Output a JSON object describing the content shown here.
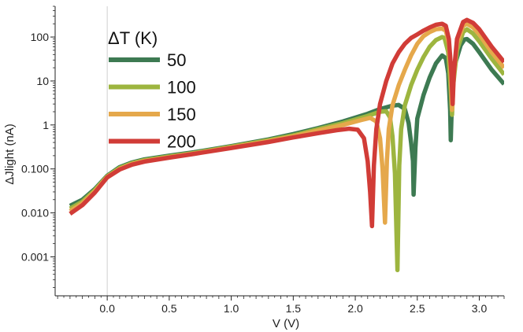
{
  "chart_data": {
    "type": "line",
    "xlabel": "V (V)",
    "ylabel": "ΔJlight (nA)",
    "xlim": [
      -0.42,
      3.2
    ],
    "ylim": [
      0.00013,
      500
    ],
    "y_scale": "log",
    "x_ticks": [
      {
        "value": 0.0,
        "label": "0.0"
      },
      {
        "value": 0.5,
        "label": "0.5"
      },
      {
        "value": 1.0,
        "label": "1.0"
      },
      {
        "value": 1.5,
        "label": "1.5"
      },
      {
        "value": 2.0,
        "label": "2.0"
      },
      {
        "value": 2.5,
        "label": "2.5"
      },
      {
        "value": 3.0,
        "label": "3.0"
      }
    ],
    "y_ticks": [
      {
        "value": 0.001,
        "label": "0.001"
      },
      {
        "value": 0.01,
        "label": "0.010"
      },
      {
        "value": 0.1,
        "label": "0.100"
      },
      {
        "value": 1,
        "label": "1"
      },
      {
        "value": 10,
        "label": "10"
      },
      {
        "value": 100,
        "label": "100"
      }
    ],
    "grid": false,
    "legend": {
      "title": "ΔT (K)",
      "position": "top-left"
    },
    "series": [
      {
        "name": "50",
        "color": "#3d7a52",
        "points": [
          [
            -0.3,
            0.0145
          ],
          [
            -0.2,
            0.02
          ],
          [
            -0.1,
            0.035
          ],
          [
            0,
            0.07
          ],
          [
            0.1,
            0.11
          ],
          [
            0.2,
            0.14
          ],
          [
            0.3,
            0.165
          ],
          [
            0.5,
            0.2
          ],
          [
            0.7,
            0.24
          ],
          [
            1.0,
            0.33
          ],
          [
            1.3,
            0.47
          ],
          [
            1.5,
            0.62
          ],
          [
            1.7,
            0.85
          ],
          [
            1.9,
            1.2
          ],
          [
            2.1,
            1.8
          ],
          [
            2.2,
            2.3
          ],
          [
            2.3,
            2.75
          ],
          [
            2.35,
            2.85
          ],
          [
            2.4,
            2.3
          ],
          [
            2.43,
            1.1
          ],
          [
            2.45,
            0.4
          ],
          [
            2.465,
            0.15
          ],
          [
            2.47,
            0.026
          ],
          [
            2.485,
            0.3
          ],
          [
            2.5,
            1.4
          ],
          [
            2.55,
            4.8
          ],
          [
            2.6,
            12
          ],
          [
            2.65,
            25
          ],
          [
            2.7,
            38
          ],
          [
            2.73,
            33
          ],
          [
            2.75,
            15
          ],
          [
            2.765,
            2.2
          ],
          [
            2.77,
            0.45
          ],
          [
            2.78,
            4
          ],
          [
            2.8,
            22
          ],
          [
            2.85,
            65
          ],
          [
            2.88,
            88
          ],
          [
            2.9,
            90
          ],
          [
            2.95,
            70
          ],
          [
            3.0,
            45
          ],
          [
            3.1,
            18
          ],
          [
            3.2,
            8.5
          ]
        ]
      },
      {
        "name": "100",
        "color": "#9db53f",
        "points": [
          [
            -0.3,
            0.0125
          ],
          [
            -0.2,
            0.018
          ],
          [
            -0.1,
            0.033
          ],
          [
            0,
            0.068
          ],
          [
            0.1,
            0.105
          ],
          [
            0.2,
            0.135
          ],
          [
            0.3,
            0.158
          ],
          [
            0.5,
            0.192
          ],
          [
            0.7,
            0.23
          ],
          [
            1.0,
            0.32
          ],
          [
            1.3,
            0.45
          ],
          [
            1.5,
            0.58
          ],
          [
            1.7,
            0.8
          ],
          [
            1.9,
            1.1
          ],
          [
            2.1,
            1.6
          ],
          [
            2.2,
            2.0
          ],
          [
            2.25,
            2.05
          ],
          [
            2.28,
            1.5
          ],
          [
            2.3,
            0.55
          ],
          [
            2.32,
            0.08
          ],
          [
            2.34,
            0.0005
          ],
          [
            2.355,
            0.12
          ],
          [
            2.37,
            0.8
          ],
          [
            2.4,
            2.8
          ],
          [
            2.45,
            8
          ],
          [
            2.5,
            18
          ],
          [
            2.55,
            35
          ],
          [
            2.6,
            60
          ],
          [
            2.65,
            85
          ],
          [
            2.7,
            100
          ],
          [
            2.72,
            95
          ],
          [
            2.75,
            45
          ],
          [
            2.77,
            6
          ],
          [
            2.78,
            1.7
          ],
          [
            2.79,
            8
          ],
          [
            2.82,
            50
          ],
          [
            2.87,
            130
          ],
          [
            2.9,
            150
          ],
          [
            2.95,
            120
          ],
          [
            3.0,
            80
          ],
          [
            3.1,
            32
          ],
          [
            3.2,
            14
          ]
        ]
      },
      {
        "name": "150",
        "color": "#e5a84b",
        "points": [
          [
            -0.3,
            0.011
          ],
          [
            -0.2,
            0.0165
          ],
          [
            -0.1,
            0.031
          ],
          [
            0,
            0.066
          ],
          [
            0.1,
            0.1
          ],
          [
            0.2,
            0.13
          ],
          [
            0.3,
            0.152
          ],
          [
            0.5,
            0.186
          ],
          [
            0.7,
            0.225
          ],
          [
            1.0,
            0.31
          ],
          [
            1.3,
            0.43
          ],
          [
            1.5,
            0.55
          ],
          [
            1.7,
            0.74
          ],
          [
            1.9,
            1.0
          ],
          [
            2.05,
            1.3
          ],
          [
            2.12,
            1.45
          ],
          [
            2.17,
            1.2
          ],
          [
            2.2,
            0.5
          ],
          [
            2.22,
            0.1
          ],
          [
            2.24,
            0.006
          ],
          [
            2.255,
            0.15
          ],
          [
            2.27,
            0.8
          ],
          [
            2.3,
            2.8
          ],
          [
            2.35,
            8
          ],
          [
            2.4,
            18
          ],
          [
            2.45,
            38
          ],
          [
            2.5,
            70
          ],
          [
            2.55,
            105
          ],
          [
            2.6,
            130
          ],
          [
            2.65,
            150
          ],
          [
            2.7,
            155
          ],
          [
            2.73,
            140
          ],
          [
            2.755,
            70
          ],
          [
            2.77,
            15
          ],
          [
            2.78,
            2.2
          ],
          [
            2.79,
            10
          ],
          [
            2.82,
            70
          ],
          [
            2.87,
            180
          ],
          [
            2.9,
            200
          ],
          [
            2.95,
            165
          ],
          [
            3.0,
            115
          ],
          [
            3.1,
            45
          ],
          [
            3.2,
            20
          ]
        ]
      },
      {
        "name": "200",
        "color": "#d13c37",
        "points": [
          [
            -0.3,
            0.0095
          ],
          [
            -0.2,
            0.015
          ],
          [
            -0.1,
            0.029
          ],
          [
            0,
            0.064
          ],
          [
            0.1,
            0.097
          ],
          [
            0.2,
            0.125
          ],
          [
            0.3,
            0.147
          ],
          [
            0.5,
            0.18
          ],
          [
            0.7,
            0.22
          ],
          [
            1.0,
            0.3
          ],
          [
            1.3,
            0.41
          ],
          [
            1.5,
            0.52
          ],
          [
            1.7,
            0.65
          ],
          [
            1.85,
            0.76
          ],
          [
            1.95,
            0.82
          ],
          [
            2.02,
            0.78
          ],
          [
            2.07,
            0.5
          ],
          [
            2.1,
            0.15
          ],
          [
            2.12,
            0.03
          ],
          [
            2.135,
            0.005
          ],
          [
            2.15,
            0.12
          ],
          [
            2.17,
            0.8
          ],
          [
            2.2,
            3
          ],
          [
            2.25,
            10
          ],
          [
            2.3,
            25
          ],
          [
            2.35,
            45
          ],
          [
            2.4,
            70
          ],
          [
            2.45,
            95
          ],
          [
            2.5,
            115
          ],
          [
            2.55,
            140
          ],
          [
            2.6,
            165
          ],
          [
            2.65,
            190
          ],
          [
            2.7,
            200
          ],
          [
            2.73,
            180
          ],
          [
            2.755,
            90
          ],
          [
            2.775,
            15
          ],
          [
            2.785,
            3
          ],
          [
            2.795,
            15
          ],
          [
            2.82,
            90
          ],
          [
            2.87,
            220
          ],
          [
            2.9,
            245
          ],
          [
            2.95,
            210
          ],
          [
            3.0,
            150
          ],
          [
            3.1,
            60
          ],
          [
            3.2,
            27
          ]
        ]
      }
    ]
  }
}
